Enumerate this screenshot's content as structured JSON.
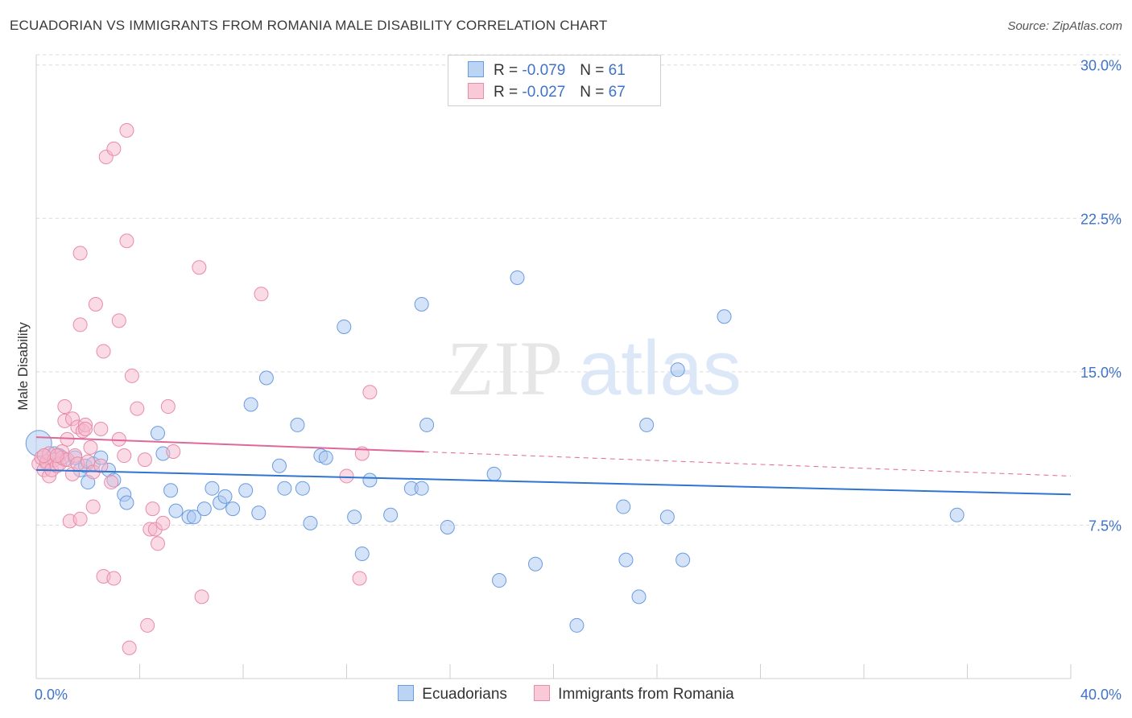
{
  "title": "ECUADORIAN VS IMMIGRANTS FROM ROMANIA MALE DISABILITY CORRELATION CHART",
  "source": "Source: ZipAtlas.com",
  "watermark": {
    "zip": "ZIP",
    "atlas": "atlas"
  },
  "colors": {
    "blue_fill": "#a9c8f0",
    "blue_stroke": "#6a9be0",
    "blue_line": "#2f74d0",
    "pink_fill": "#f6b8cc",
    "pink_stroke": "#e98aa8",
    "pink_line": "#e0679a",
    "grid": "#d9d9d9",
    "label": "#3f73c9"
  },
  "legend_top": [
    {
      "r_label": "R =",
      "r_value": "-0.079",
      "n_label": "N =",
      "n_value": "61"
    },
    {
      "r_label": "R =",
      "r_value": "-0.027",
      "n_label": "N =",
      "n_value": "67"
    }
  ],
  "legend_bottom": [
    "Ecuadorians",
    "Immigrants from Romania"
  ],
  "chart_data": {
    "type": "scatter",
    "title": "ECUADORIAN VS IMMIGRANTS FROM ROMANIA MALE DISABILITY CORRELATION CHART",
    "xlabel": "",
    "ylabel": "Male Disability",
    "xlim": [
      0,
      40
    ],
    "ylim": [
      0,
      30.5
    ],
    "x_tick_labels": [
      "0.0%",
      "40.0%"
    ],
    "y_ticks": [
      7.5,
      15.0,
      22.5,
      30.0
    ],
    "y_tick_labels": [
      "7.5%",
      "15.0%",
      "22.5%",
      "30.0%"
    ],
    "series": [
      {
        "name": "Ecuadorians",
        "r": -0.079,
        "n": 61,
        "trend": {
          "x": [
            0,
            40
          ],
          "y": [
            10.2,
            9.0
          ],
          "dashed_from": null
        },
        "points": [
          [
            0.1,
            11.5
          ],
          [
            0.4,
            10.5
          ],
          [
            0.7,
            11.0
          ],
          [
            0.9,
            10.9
          ],
          [
            1.1,
            10.7
          ],
          [
            1.5,
            10.8
          ],
          [
            1.7,
            10.2
          ],
          [
            1.9,
            10.4
          ],
          [
            2.0,
            9.6
          ],
          [
            2.2,
            10.5
          ],
          [
            2.5,
            10.8
          ],
          [
            2.8,
            10.2
          ],
          [
            3.0,
            9.7
          ],
          [
            3.4,
            9.0
          ],
          [
            3.5,
            8.6
          ],
          [
            4.7,
            12.0
          ],
          [
            4.9,
            11.0
          ],
          [
            5.2,
            9.2
          ],
          [
            5.4,
            8.2
          ],
          [
            5.9,
            7.9
          ],
          [
            6.1,
            7.9
          ],
          [
            6.5,
            8.3
          ],
          [
            6.8,
            9.3
          ],
          [
            7.1,
            8.6
          ],
          [
            7.3,
            8.9
          ],
          [
            7.6,
            8.3
          ],
          [
            8.1,
            9.2
          ],
          [
            8.3,
            13.4
          ],
          [
            8.6,
            8.1
          ],
          [
            8.9,
            14.7
          ],
          [
            9.4,
            10.4
          ],
          [
            9.6,
            9.3
          ],
          [
            10.1,
            12.4
          ],
          [
            10.3,
            9.3
          ],
          [
            10.6,
            7.6
          ],
          [
            11.0,
            10.9
          ],
          [
            11.2,
            10.8
          ],
          [
            11.9,
            17.2
          ],
          [
            12.3,
            7.9
          ],
          [
            12.6,
            6.1
          ],
          [
            12.9,
            9.7
          ],
          [
            13.7,
            8.0
          ],
          [
            14.5,
            9.3
          ],
          [
            14.9,
            9.3
          ],
          [
            14.9,
            18.3
          ],
          [
            15.1,
            12.4
          ],
          [
            15.9,
            7.4
          ],
          [
            17.7,
            10.0
          ],
          [
            17.9,
            4.8
          ],
          [
            18.6,
            19.6
          ],
          [
            19.3,
            5.6
          ],
          [
            20.9,
            2.6
          ],
          [
            22.7,
            8.4
          ],
          [
            22.8,
            5.8
          ],
          [
            23.3,
            4.0
          ],
          [
            23.6,
            12.4
          ],
          [
            24.4,
            7.9
          ],
          [
            24.8,
            15.1
          ],
          [
            25.0,
            5.8
          ],
          [
            26.6,
            17.7
          ],
          [
            35.6,
            8.0
          ]
        ]
      },
      {
        "name": "Immigrants from Romania",
        "r": -0.027,
        "n": 67,
        "trend": {
          "x": [
            0,
            40
          ],
          "y": [
            11.8,
            9.9
          ],
          "dashed_from": 15.0
        },
        "points": [
          [
            0.1,
            10.5
          ],
          [
            0.2,
            10.8
          ],
          [
            0.3,
            10.2
          ],
          [
            0.4,
            10.6
          ],
          [
            0.5,
            11.0
          ],
          [
            0.5,
            9.9
          ],
          [
            0.6,
            10.2
          ],
          [
            0.7,
            10.7
          ],
          [
            0.8,
            10.4
          ],
          [
            0.9,
            10.5
          ],
          [
            1.0,
            11.1
          ],
          [
            1.0,
            10.8
          ],
          [
            1.1,
            13.3
          ],
          [
            1.1,
            12.6
          ],
          [
            1.2,
            10.7
          ],
          [
            1.2,
            11.7
          ],
          [
            1.3,
            7.7
          ],
          [
            1.4,
            12.7
          ],
          [
            1.4,
            10.0
          ],
          [
            1.5,
            10.9
          ],
          [
            1.6,
            10.5
          ],
          [
            1.6,
            12.3
          ],
          [
            1.7,
            17.3
          ],
          [
            1.7,
            20.8
          ],
          [
            1.7,
            7.8
          ],
          [
            1.8,
            12.1
          ],
          [
            1.9,
            12.4
          ],
          [
            1.9,
            12.2
          ],
          [
            2.0,
            10.6
          ],
          [
            2.1,
            11.3
          ],
          [
            2.2,
            8.4
          ],
          [
            2.2,
            10.1
          ],
          [
            2.3,
            18.3
          ],
          [
            2.5,
            10.4
          ],
          [
            2.5,
            12.2
          ],
          [
            2.6,
            16.0
          ],
          [
            2.6,
            5.0
          ],
          [
            2.7,
            25.5
          ],
          [
            2.9,
            9.6
          ],
          [
            3.0,
            25.9
          ],
          [
            3.0,
            4.9
          ],
          [
            3.2,
            17.5
          ],
          [
            3.2,
            11.7
          ],
          [
            3.4,
            10.9
          ],
          [
            3.5,
            26.8
          ],
          [
            3.5,
            21.4
          ],
          [
            3.6,
            1.5
          ],
          [
            3.7,
            14.8
          ],
          [
            3.9,
            13.2
          ],
          [
            4.2,
            10.7
          ],
          [
            4.3,
            2.6
          ],
          [
            4.4,
            7.3
          ],
          [
            4.5,
            8.3
          ],
          [
            4.6,
            7.3
          ],
          [
            4.7,
            6.6
          ],
          [
            4.9,
            7.6
          ],
          [
            5.1,
            13.3
          ],
          [
            5.3,
            11.1
          ],
          [
            6.3,
            20.1
          ],
          [
            6.4,
            4.0
          ],
          [
            8.7,
            18.8
          ],
          [
            12.0,
            9.9
          ],
          [
            12.5,
            4.9
          ],
          [
            12.6,
            11.0
          ],
          [
            12.9,
            14.0
          ],
          [
            0.3,
            10.9
          ],
          [
            0.8,
            10.9
          ]
        ]
      }
    ]
  }
}
